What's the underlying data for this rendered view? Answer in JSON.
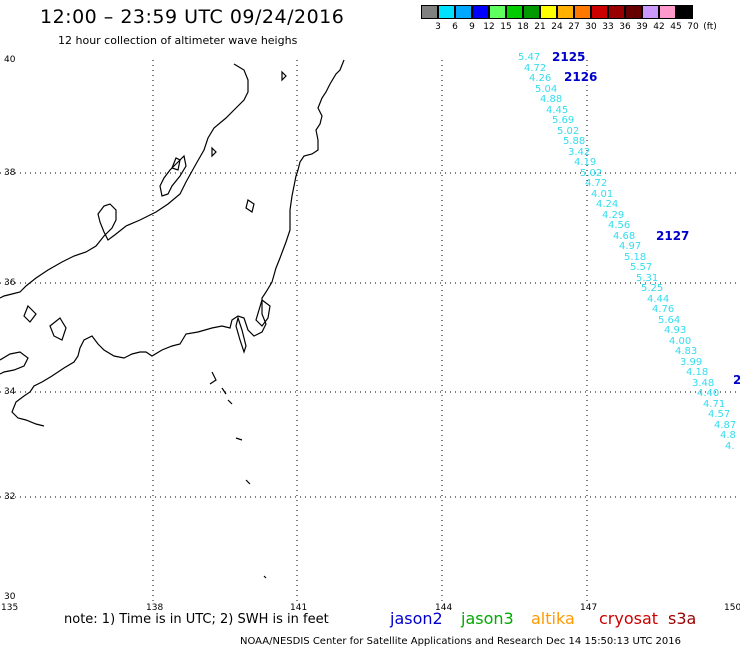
{
  "header": {
    "title": "12:00  –  23:59 UTC 09/24/2016",
    "subtitle": "12 hour collection of altimeter wave heighs"
  },
  "colorbar": {
    "unit": "(ft)",
    "colors": [
      "#808080",
      "#00e0ff",
      "#00a8ff",
      "#0000ff",
      "#60ff60",
      "#00cc00",
      "#009900",
      "#ffff00",
      "#ffb000",
      "#ff7800",
      "#cc0000",
      "#990000",
      "#660000",
      "#cc99ff",
      "#ff99cc",
      "#000000"
    ],
    "labels": [
      "3",
      "6",
      "9",
      "12",
      "15",
      "18",
      "21",
      "24",
      "27",
      "30",
      "33",
      "36",
      "39",
      "42",
      "45",
      "70"
    ]
  },
  "axes": {
    "lat_labels": [
      "40",
      "38",
      "36",
      "34",
      "32",
      "30"
    ],
    "lon_labels": [
      "135",
      "138",
      "141",
      "144",
      "147",
      "150"
    ]
  },
  "passes": [
    {
      "id": "2125"
    },
    {
      "id": "2126"
    },
    {
      "id": "2127"
    },
    {
      "id": "2"
    }
  ],
  "observations": [
    "5.47",
    "4.72",
    "4.26",
    "5.04",
    "4.88",
    "4.45",
    "5.69",
    "5.02",
    "5.88",
    "3.42",
    "4.19",
    "5.02",
    "4.72",
    "4.01",
    "4.24",
    "4.29",
    "4.56",
    "4.68",
    "4.97",
    "5.18",
    "5.57",
    "5.31",
    "5.25",
    "4.44",
    "4.76",
    "5.64",
    "4.93",
    "4.00",
    "4.83",
    "3.99",
    "4.18",
    "3.48",
    "4.40",
    "4.71",
    "4.57",
    "4.87",
    "4.8",
    "4."
  ],
  "footer": {
    "note": "note:  1) Time is in UTC;  2) SWH is in feet",
    "missions": [
      {
        "name": "jason2",
        "color": "#0000cc"
      },
      {
        "name": "jason3",
        "color": "#00aa00"
      },
      {
        "name": "altika",
        "color": "#ff9900"
      },
      {
        "name": "cryosat",
        "color": "#cc0000"
      },
      {
        "name": "s3a",
        "color": "#990000"
      }
    ],
    "credit": "NOAA/NESDIS Center for Satellite Applications and Research     Dec 14 15:50:13 UTC 2016"
  }
}
